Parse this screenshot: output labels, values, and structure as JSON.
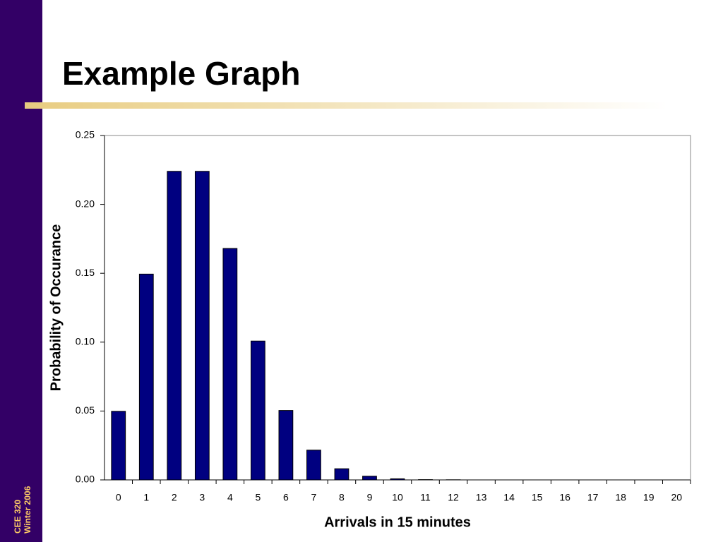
{
  "slide": {
    "title": "Example Graph",
    "sidebar": [
      "CEE 320",
      "Winter 2006"
    ]
  },
  "chart_data": {
    "type": "bar",
    "x_label": "Arrivals in 15 minutes",
    "y_label": "Probability of Occurance",
    "categories": [
      "0",
      "1",
      "2",
      "3",
      "4",
      "5",
      "6",
      "7",
      "8",
      "9",
      "10",
      "11",
      "12",
      "13",
      "14",
      "15",
      "16",
      "17",
      "18",
      "19",
      "20"
    ],
    "values": [
      0.0498,
      0.1494,
      0.224,
      0.224,
      0.168,
      0.1008,
      0.0504,
      0.0216,
      0.0081,
      0.0027,
      0.0008,
      0.0002,
      0.0001,
      0,
      0,
      0,
      0,
      0,
      0,
      0,
      0
    ],
    "color": "#000080",
    "ylim": [
      0,
      0.25
    ],
    "yticks": [
      {
        "value": 0,
        "label": "0.00"
      },
      {
        "value": 0.05,
        "label": "0.05"
      },
      {
        "value": 0.1,
        "label": "0.10"
      },
      {
        "value": 0.15,
        "label": "0.15"
      },
      {
        "value": 0.2,
        "label": "0.20"
      },
      {
        "value": 0.25,
        "label": "0.25"
      }
    ],
    "grid": false
  }
}
